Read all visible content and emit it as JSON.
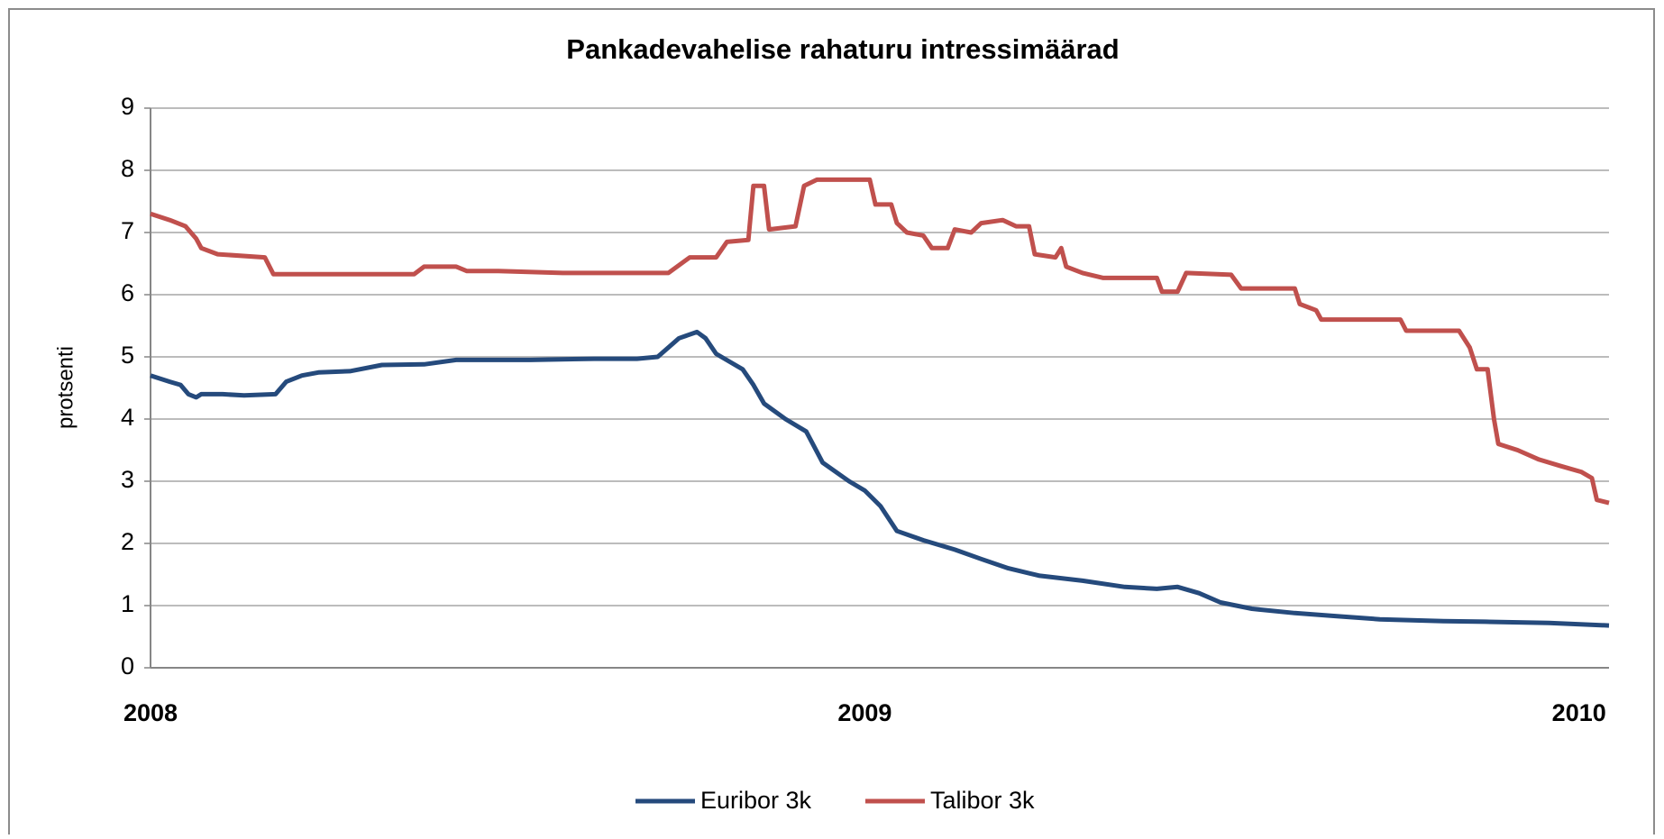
{
  "chart_data": {
    "type": "line",
    "title": "Pankadevahelise rahaturu intressimäärad",
    "ylabel": "protsenti",
    "xlim": [
      2008,
      2010.042
    ],
    "xticks": [
      2008,
      2009,
      2010
    ],
    "ylim": [
      0,
      9
    ],
    "yticks": [
      0,
      1,
      2,
      3,
      4,
      5,
      6,
      7,
      8,
      9
    ],
    "grid": true,
    "legend": "bottom",
    "series": [
      {
        "name": "Euribor 3k",
        "color": "#254a7c",
        "x": [
          2008,
          2008.027,
          2008.042,
          2008.053,
          2008.064,
          2008.071,
          2008.101,
          2008.131,
          2008.175,
          2008.19,
          2008.212,
          2008.235,
          2008.279,
          2008.324,
          2008.383,
          2008.428,
          2008.532,
          2008.621,
          2008.681,
          2008.71,
          2008.74,
          2008.765,
          2008.777,
          2008.792,
          2008.814,
          2008.829,
          2008.844,
          2008.859,
          2008.889,
          2008.918,
          2008.941,
          2008.978,
          2009,
          2009.022,
          2009.045,
          2009.082,
          2009.126,
          2009.163,
          2009.201,
          2009.245,
          2009.305,
          2009.364,
          2009.409,
          2009.438,
          2009.468,
          2009.498,
          2009.542,
          2009.602,
          2009.661,
          2009.721,
          2009.81,
          2009.869,
          2009.958,
          2010.042
        ],
        "values": [
          4.7,
          4.6,
          4.55,
          4.4,
          4.35,
          4.4,
          4.4,
          4.38,
          4.4,
          4.6,
          4.7,
          4.75,
          4.77,
          4.87,
          4.88,
          4.95,
          4.95,
          4.97,
          4.97,
          5.0,
          5.3,
          5.4,
          5.3,
          5.05,
          4.9,
          4.8,
          4.55,
          4.25,
          4.0,
          3.8,
          3.3,
          3.0,
          2.85,
          2.6,
          2.2,
          2.05,
          1.9,
          1.75,
          1.6,
          1.48,
          1.4,
          1.3,
          1.27,
          1.3,
          1.2,
          1.05,
          0.95,
          0.88,
          0.83,
          0.78,
          0.75,
          0.74,
          0.72,
          0.68
        ]
      },
      {
        "name": "Talibor 3k",
        "color": "#c0504d",
        "x": [
          2008,
          2008.027,
          2008.049,
          2008.064,
          2008.071,
          2008.094,
          2008.16,
          2008.172,
          2008.369,
          2008.383,
          2008.428,
          2008.443,
          2008.487,
          2008.577,
          2008.725,
          2008.755,
          2008.792,
          2008.807,
          2008.837,
          2008.844,
          2008.859,
          2008.866,
          2008.903,
          2008.915,
          2008.933,
          2009.007,
          2009.015,
          2009.037,
          2009.045,
          2009.059,
          2009.082,
          2009.094,
          2009.116,
          2009.126,
          2009.149,
          2009.163,
          2009.193,
          2009.212,
          2009.23,
          2009.238,
          2009.267,
          2009.275,
          2009.282,
          2009.305,
          2009.334,
          2009.409,
          2009.416,
          2009.438,
          2009.45,
          2009.513,
          2009.527,
          2009.602,
          2009.609,
          2009.632,
          2009.639,
          2009.75,
          2009.758,
          2009.832,
          2009.847,
          2009.857,
          2009.872,
          2009.881,
          2009.887,
          2009.914,
          2009.944,
          2009.973,
          2010.003,
          2010.018,
          2010.025,
          2010.042
        ],
        "values": [
          7.3,
          7.2,
          7.1,
          6.9,
          6.75,
          6.65,
          6.6,
          6.33,
          6.33,
          6.45,
          6.45,
          6.38,
          6.38,
          6.35,
          6.35,
          6.6,
          6.6,
          6.85,
          6.88,
          7.75,
          7.75,
          7.05,
          7.1,
          7.75,
          7.85,
          7.85,
          7.45,
          7.45,
          7.15,
          7.0,
          6.95,
          6.75,
          6.75,
          7.05,
          7.0,
          7.15,
          7.2,
          7.1,
          7.1,
          6.65,
          6.6,
          6.75,
          6.45,
          6.35,
          6.27,
          6.27,
          6.05,
          6.05,
          6.35,
          6.32,
          6.1,
          6.1,
          5.85,
          5.75,
          5.6,
          5.6,
          5.42,
          5.42,
          5.15,
          4.8,
          4.8,
          4.0,
          3.6,
          3.5,
          3.35,
          3.25,
          3.15,
          3.05,
          2.7,
          2.65
        ]
      }
    ]
  }
}
